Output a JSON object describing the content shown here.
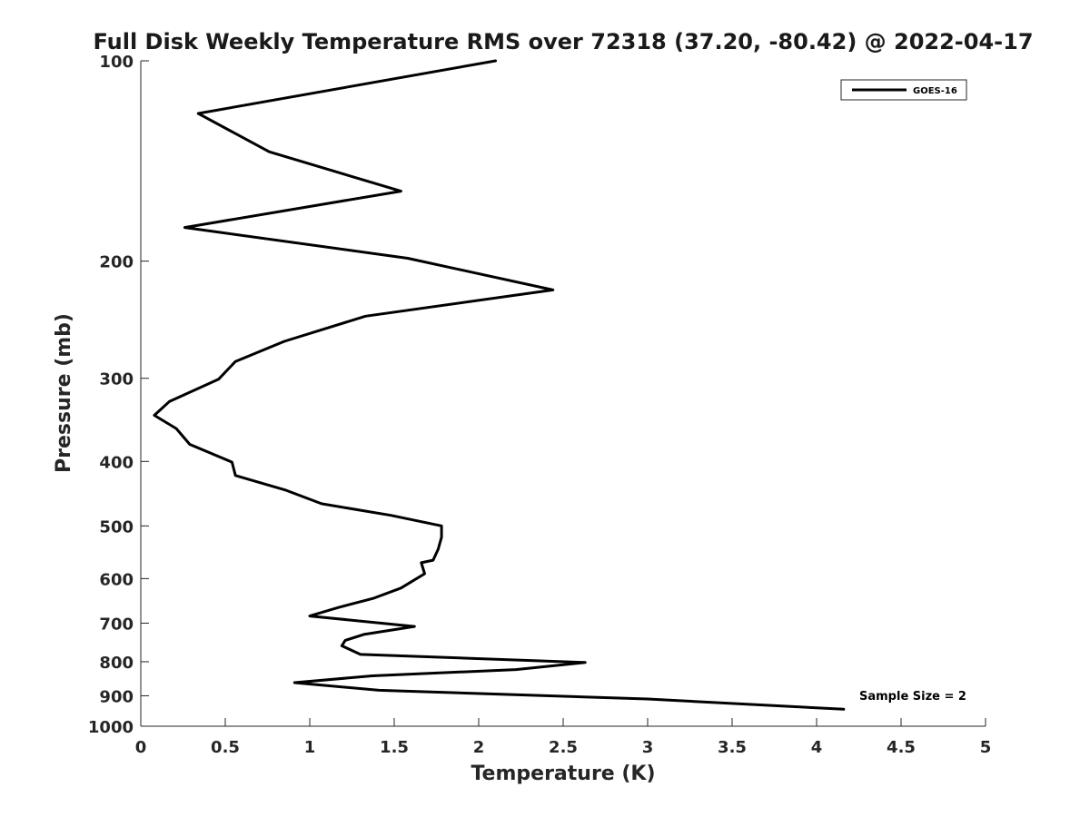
{
  "chart_data": {
    "type": "line",
    "title": "Full Disk Weekly Temperature RMS over 72318 (37.20, -80.42) @ 2022-04-17",
    "xlabel": "Temperature (K)",
    "ylabel": "Pressure (mb)",
    "xlim": [
      0,
      5
    ],
    "ylim": [
      100,
      1000
    ],
    "y_scale": "log",
    "y_reversed": true,
    "grid": false,
    "legend_position": "top-right",
    "x_ticks": [
      "0",
      "0.5",
      "1",
      "1.5",
      "2",
      "2.5",
      "3",
      "3.5",
      "4",
      "4.5",
      "5"
    ],
    "y_ticks": [
      "100",
      "200",
      "300",
      "400",
      "500",
      "600",
      "700",
      "800",
      "900",
      "1000"
    ],
    "series": [
      {
        "name": "GOES-16",
        "color": "#000000",
        "x": [
          2.1,
          0.34,
          0.76,
          1.54,
          0.26,
          1.58,
          2.44,
          1.33,
          0.85,
          0.56,
          0.46,
          0.17,
          0.08,
          0.21,
          0.29,
          0.54,
          0.56,
          0.86,
          1.07,
          1.48,
          1.78,
          1.78,
          1.76,
          1.73,
          1.66,
          1.68,
          1.54,
          1.38,
          1.17,
          1.0,
          1.62,
          1.32,
          1.21,
          1.19,
          1.3,
          2.63,
          2.22,
          1.37,
          0.91,
          1.41,
          3.0,
          4.16
        ],
        "y": [
          100,
          120,
          137,
          157,
          178,
          198,
          221,
          242,
          264,
          283,
          301,
          325,
          341,
          357,
          377,
          401,
          420,
          442,
          463,
          482,
          500,
          520,
          542,
          563,
          568,
          590,
          620,
          642,
          663,
          683,
          708,
          728,
          743,
          757,
          780,
          802,
          822,
          840,
          860,
          883,
          910,
          943
        ]
      }
    ],
    "annotation": "Sample Size = 2"
  }
}
